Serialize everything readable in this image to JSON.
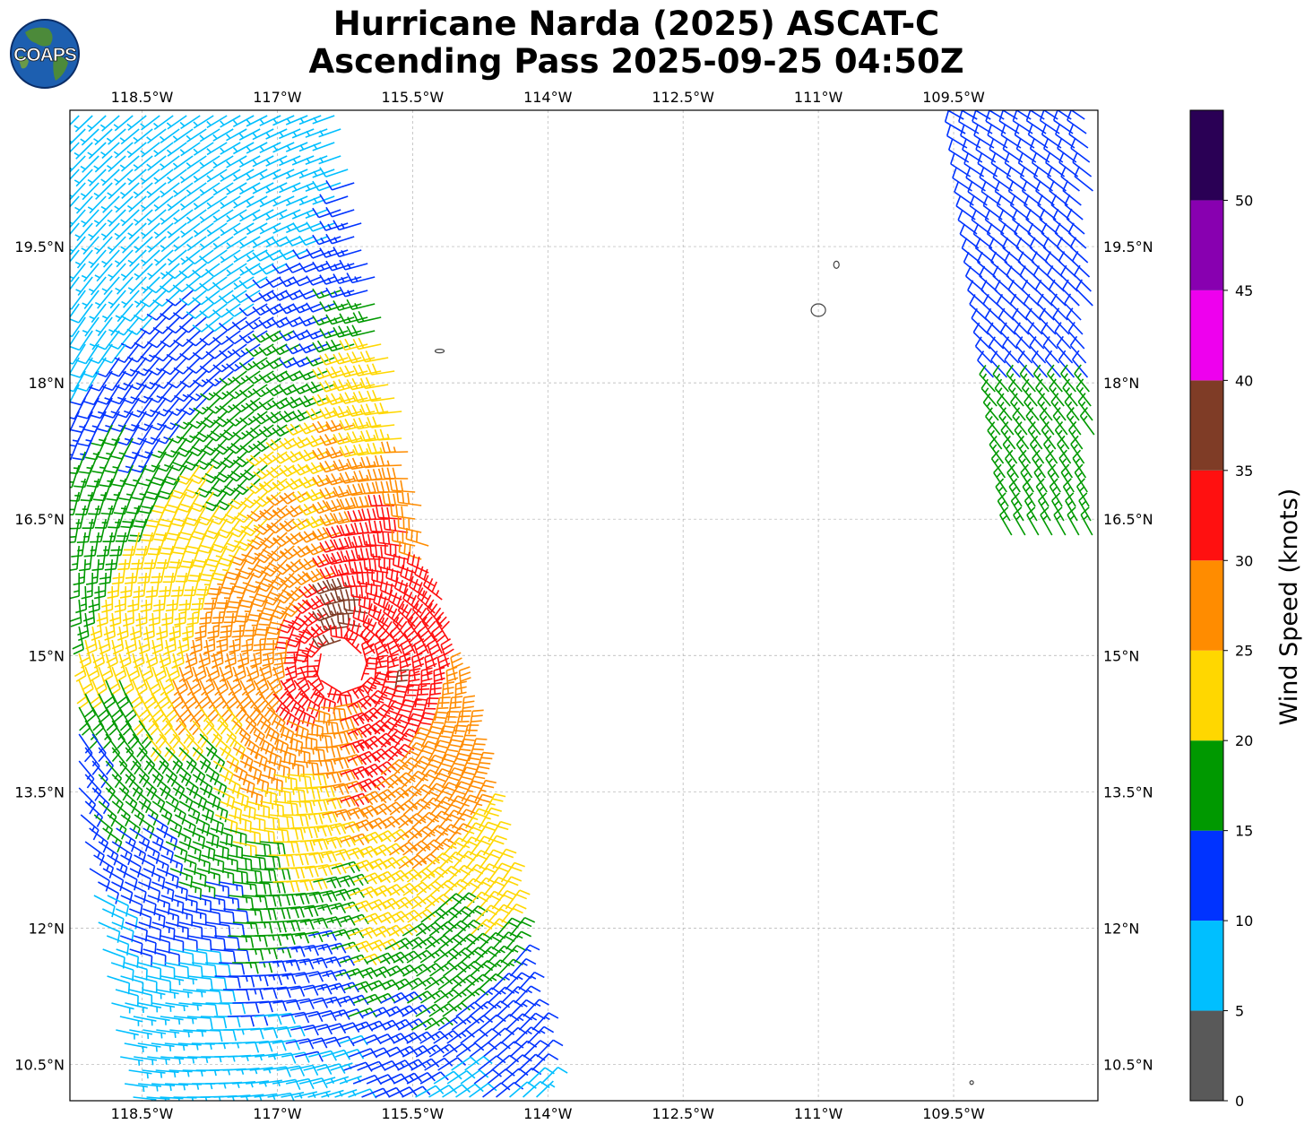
{
  "title": {
    "line1": "Hurricane Narda (2025) ASCAT-C",
    "line2": "Ascending Pass 2025-09-25 04:50Z"
  },
  "logo": {
    "text": "COAPS",
    "icon": "globe-logo"
  },
  "map": {
    "lon_range": [
      -119.3,
      -107.9
    ],
    "lat_range": [
      10.1,
      21.0
    ],
    "lon_ticks": [
      "118.5°W",
      "117°W",
      "115.5°W",
      "114°W",
      "112.5°W",
      "111°W",
      "109.5°W"
    ],
    "lon_tick_values": [
      -118.5,
      -117,
      -115.5,
      -114,
      -112.5,
      -111,
      -109.5
    ],
    "lat_ticks": [
      "19.5°N",
      "18°N",
      "16.5°N",
      "15°N",
      "13.5°N",
      "12°N",
      "10.5°N"
    ],
    "lat_tick_values": [
      19.5,
      18,
      16.5,
      15,
      13.5,
      12,
      10.5
    ],
    "gridlines": true,
    "land_outline_color": "#444444",
    "storm_center": {
      "lon": -116.3,
      "lat": 14.9
    },
    "islands": [
      {
        "name": "",
        "lon": -115.2,
        "lat": 18.35
      },
      {
        "name": "",
        "lon": -111.0,
        "lat": 18.8
      },
      {
        "name": "",
        "lon": -110.8,
        "lat": 19.3
      },
      {
        "name": "",
        "lon": -109.3,
        "lat": 10.3
      }
    ]
  },
  "chart_data": {
    "type": "wind-barbs",
    "variable": "Wind Speed (knots)",
    "swaths": [
      {
        "name": "",
        "lon_west_edge_top": -119.3,
        "lon_east_edge_top": -116.3,
        "lon_east_edge_bottom": -114.0,
        "lat_top": 21.0,
        "lat_bottom": 10.1
      },
      {
        "name": "",
        "lon_west_edge": -109.4,
        "lon_east_edge": -107.9,
        "lat_top": 21.0,
        "lat_bottom": 16.3
      }
    ],
    "speed_bins": [
      0,
      5,
      10,
      15,
      20,
      25,
      30,
      35,
      40,
      45,
      50
    ]
  },
  "colorbar": {
    "label": "Wind Speed (knots)",
    "tick_labels": [
      "0",
      "5",
      "10",
      "15",
      "20",
      "25",
      "30",
      "35",
      "40",
      "45",
      "50"
    ],
    "tick_values": [
      0,
      5,
      10,
      15,
      20,
      25,
      30,
      35,
      40,
      45,
      50
    ],
    "max": 55,
    "colors": [
      "#595959",
      "#00bfff",
      "#0033ff",
      "#009900",
      "#ffd700",
      "#ff8c00",
      "#ff1010",
      "#7f3c26",
      "#ee00ee",
      "#8800b0",
      "#2a0055"
    ]
  }
}
